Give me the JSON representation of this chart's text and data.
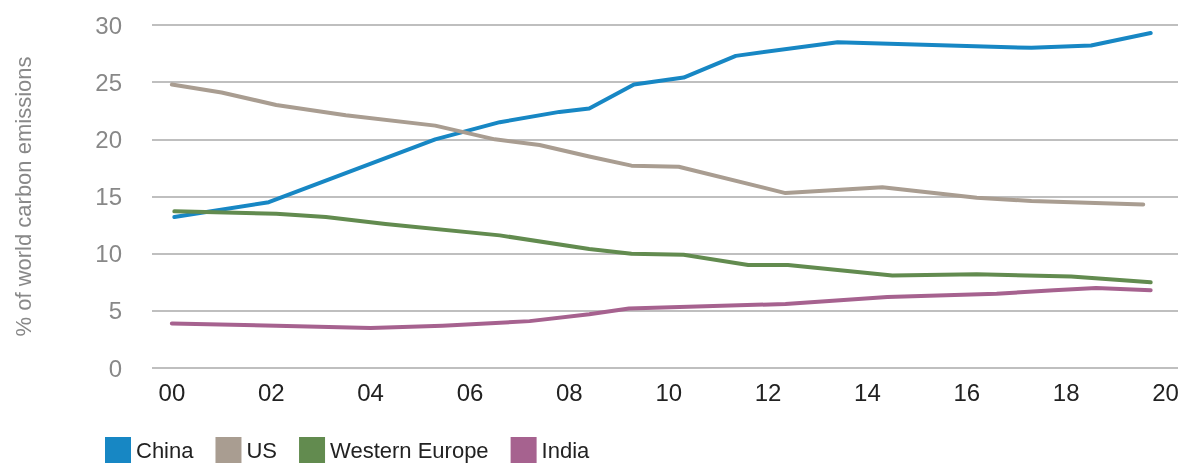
{
  "chart_data": {
    "type": "line",
    "ylabel": "% of world carbon emissions",
    "xlim": [
      1999.6,
      2020.25
    ],
    "xticks": [
      {
        "value": 2000,
        "label": "00"
      },
      {
        "value": 2002,
        "label": "02"
      },
      {
        "value": 2004,
        "label": "04"
      },
      {
        "value": 2006,
        "label": "06"
      },
      {
        "value": 2008,
        "label": "08"
      },
      {
        "value": 2010,
        "label": "10"
      },
      {
        "value": 2012,
        "label": "12"
      },
      {
        "value": 2014,
        "label": "14"
      },
      {
        "value": 2016,
        "label": "16"
      },
      {
        "value": 2018,
        "label": "18"
      },
      {
        "value": 2020,
        "label": "20"
      }
    ],
    "ylim": [
      0,
      30
    ],
    "yticks": [
      0,
      5,
      10,
      15,
      20,
      25,
      30
    ],
    "grid": "y",
    "legend": "bottom left",
    "marker": "none",
    "line_style": "solid",
    "series": [
      {
        "name": "China",
        "color": "#1787c4",
        "x": [
          2000.05,
          2001.95,
          2005.3,
          2006.6,
          2007.8,
          2008.4,
          2009.3,
          2010.3,
          2011.35,
          2013.4,
          2017.3,
          2018.5,
          2019.7
        ],
        "values": [
          13.2,
          14.5,
          20.0,
          21.5,
          22.4,
          22.7,
          24.8,
          25.4,
          27.3,
          28.5,
          28.0,
          28.2,
          29.3
        ]
      },
      {
        "name": "US",
        "color": "#a99d91",
        "x": [
          2000,
          2001,
          2002.1,
          2003.5,
          2005.3,
          2006.5,
          2007.4,
          2008.4,
          2009.25,
          2010.2,
          2012.35,
          2014.3,
          2016.2,
          2017.3,
          2019.55
        ],
        "values": [
          24.8,
          24.1,
          23.0,
          22.1,
          21.2,
          20.0,
          19.5,
          18.5,
          17.7,
          17.6,
          15.3,
          15.8,
          14.9,
          14.6,
          14.3
        ]
      },
      {
        "name": "Western Europe",
        "color": "#628b4f",
        "x": [
          2000.05,
          2002.1,
          2003.1,
          2004.3,
          2006.6,
          2008.4,
          2009.25,
          2010.3,
          2011.6,
          2012.4,
          2014.5,
          2016.2,
          2018.1,
          2019.7
        ],
        "values": [
          13.7,
          13.5,
          13.2,
          12.6,
          11.6,
          10.4,
          10.0,
          9.9,
          9.0,
          9.0,
          8.1,
          8.2,
          8.0,
          7.5
        ]
      },
      {
        "name": "India",
        "color": "#a6628f",
        "x": [
          2000,
          2002.1,
          2004.0,
          2005.45,
          2007.2,
          2008.4,
          2009.2,
          2012.35,
          2014.4,
          2016.6,
          2017.75,
          2018.6,
          2019.7
        ],
        "values": [
          3.9,
          3.7,
          3.5,
          3.7,
          4.1,
          4.7,
          5.2,
          5.6,
          6.2,
          6.5,
          6.8,
          7.0,
          6.8
        ]
      }
    ]
  }
}
